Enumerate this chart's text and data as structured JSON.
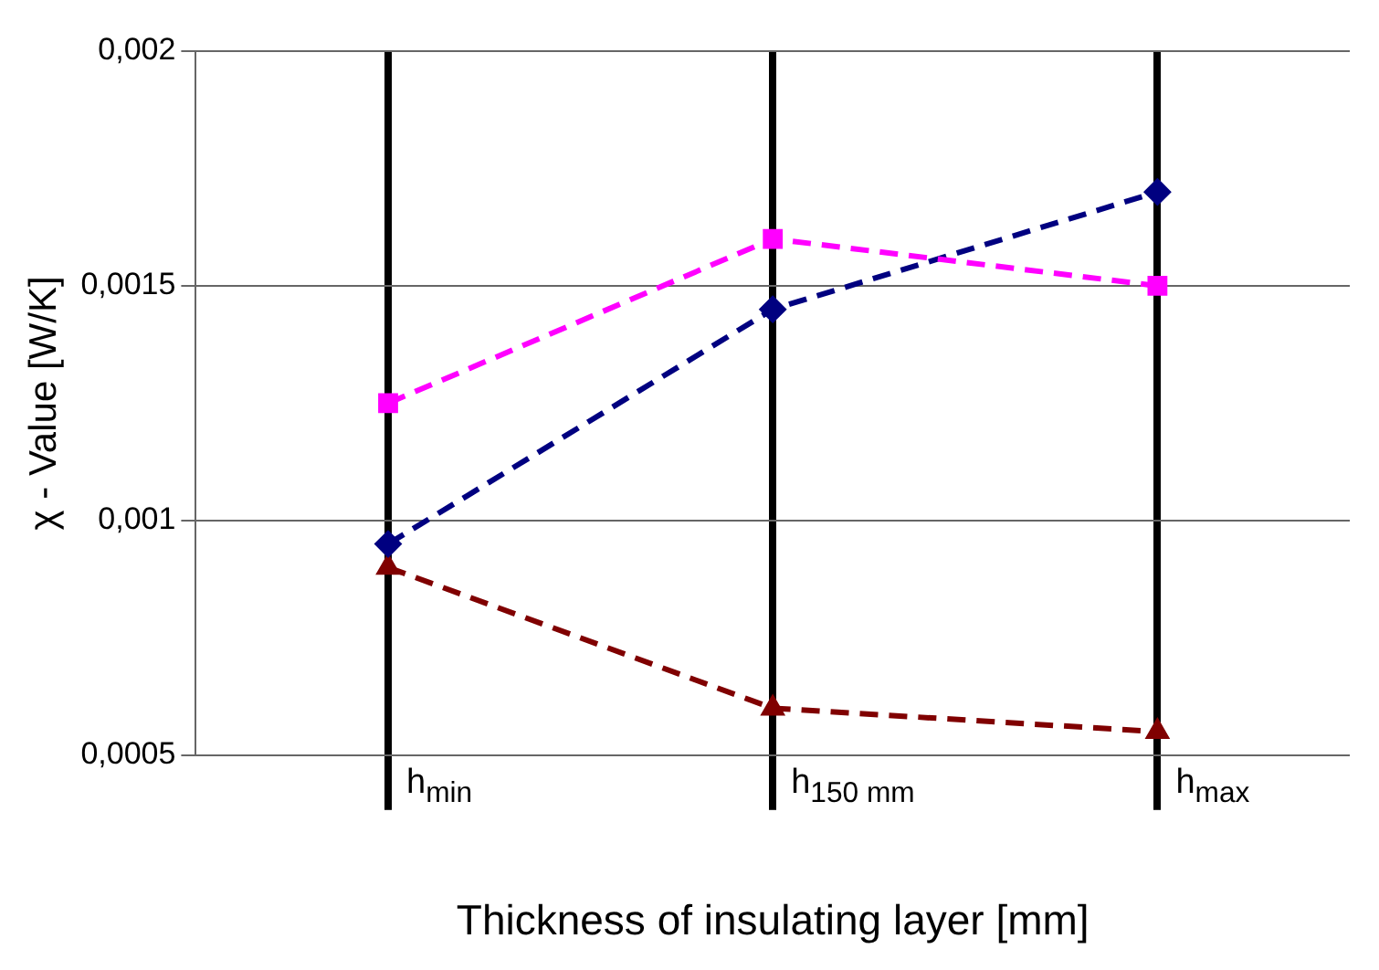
{
  "chart_data": {
    "type": "line",
    "xlabel": "Thickness of insulating layer [mm]",
    "ylabel": "χ - Value [W/K]",
    "categories": [
      "h$_{min}$",
      "h$_{150 mm}$",
      "h$_{max}$"
    ],
    "series": [
      {
        "color": "#ff00ff",
        "marker": "square",
        "values": [
          0.00125,
          0.0016,
          0.0015
        ]
      },
      {
        "color": "#000080",
        "marker": "diamond",
        "values": [
          0.00095,
          0.00145,
          0.0017
        ]
      },
      {
        "color": "#800000",
        "marker": "triangle",
        "values": [
          0.0009,
          0.0006,
          0.00055
        ]
      }
    ],
    "ylim": [
      0.0005,
      0.002
    ],
    "yticks": [
      {
        "value": 0.0005,
        "label": "0,0005"
      },
      {
        "value": 0.001,
        "label": "0,001"
      },
      {
        "value": 0.0015,
        "label": "0,0015"
      },
      {
        "value": 0.002,
        "label": "0,002"
      }
    ],
    "grid": true,
    "legend": false,
    "line_style": "dashed"
  }
}
